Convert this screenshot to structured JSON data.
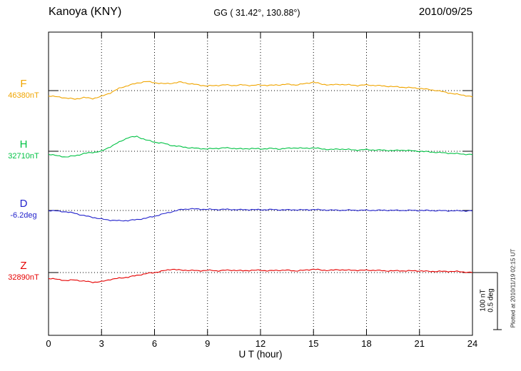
{
  "header": {
    "station": "Kanoya (KNY)",
    "coords": "GG ( 31.42°, 130.88°)",
    "date": "2010/09/25"
  },
  "axis": {
    "xlabel": "U T (hour)",
    "ticks": [
      "0",
      "3",
      "6",
      "9",
      "12",
      "15",
      "18",
      "21",
      "24"
    ]
  },
  "scalebar": {
    "nt": "100 nT",
    "deg": "0.5 deg"
  },
  "footer": {
    "plotted": "Plotted at 2010/11/19 02:15 UT"
  },
  "chart_data": {
    "type": "line",
    "x_range_hours": [
      0,
      24
    ],
    "x_step_hours": 0.5,
    "xlabel": "U T (hour)",
    "grid": "dotted vertical every 3 h; dotted horizontal baseline per trace",
    "series": [
      {
        "name": "F",
        "unit": "nT",
        "color": "#f0a500",
        "baseline_label": "46380nT",
        "baseline_value": 46380,
        "scale_per_bar": 100,
        "values": [
          -9,
          -11,
          -13,
          -15,
          -12,
          -14,
          -10,
          -4,
          4,
          9,
          13,
          16,
          14,
          12,
          13,
          15,
          12,
          10,
          8,
          9,
          10,
          9,
          10,
          9,
          10,
          9,
          10,
          11,
          10,
          12,
          15,
          11,
          10,
          11,
          10,
          9,
          10,
          9,
          8,
          7,
          6,
          5,
          4,
          2,
          0,
          -3,
          -6,
          -8,
          -11
        ]
      },
      {
        "name": "H",
        "unit": "nT",
        "color": "#00c244",
        "baseline_label": "32710nT",
        "baseline_value": 32710,
        "scale_per_bar": 100,
        "values": [
          -5,
          -8,
          -10,
          -8,
          -4,
          -2,
          0,
          8,
          16,
          24,
          26,
          20,
          16,
          14,
          10,
          8,
          6,
          5,
          4,
          5,
          6,
          5,
          4,
          5,
          4,
          5,
          4,
          5,
          6,
          5,
          6,
          4,
          3,
          4,
          3,
          2,
          3,
          2,
          2,
          1,
          2,
          1,
          0,
          -1,
          -2,
          -3,
          -4,
          -5,
          -6
        ]
      },
      {
        "name": "D",
        "unit": "deg",
        "color": "#2222cc",
        "baseline_label": "-6.2deg",
        "baseline_value": -6.2,
        "scale_per_bar": 0.5,
        "values": [
          0,
          -0.005,
          -0.012,
          -0.025,
          -0.045,
          -0.06,
          -0.075,
          -0.085,
          -0.09,
          -0.088,
          -0.08,
          -0.068,
          -0.05,
          -0.03,
          -0.01,
          0.008,
          0.015,
          0.012,
          0.01,
          0.008,
          0.01,
          0.008,
          0.006,
          0.008,
          0.006,
          0.008,
          0.006,
          0.005,
          0.006,
          0.005,
          0.008,
          0.005,
          0.003,
          0.002,
          0.003,
          0.002,
          0.002,
          0.001,
          0.002,
          0.001,
          0,
          0.001,
          0,
          0,
          -0.002,
          -0.002,
          -0.003,
          -0.003,
          -0.004
        ]
      },
      {
        "name": "Z",
        "unit": "nT",
        "color": "#e60000",
        "baseline_label": "32890nT",
        "baseline_value": 32890,
        "scale_per_bar": 100,
        "values": [
          -10,
          -12,
          -14,
          -13,
          -15,
          -17,
          -16,
          -12,
          -10,
          -8,
          -5,
          -2,
          0,
          3,
          6,
          4,
          4,
          3,
          4,
          3,
          4,
          4,
          3,
          4,
          4,
          3,
          4,
          4,
          3,
          4,
          6,
          4,
          4,
          5,
          4,
          4,
          4,
          4,
          3,
          3,
          3,
          3,
          3,
          2,
          2,
          2,
          2,
          1,
          0
        ]
      }
    ]
  }
}
